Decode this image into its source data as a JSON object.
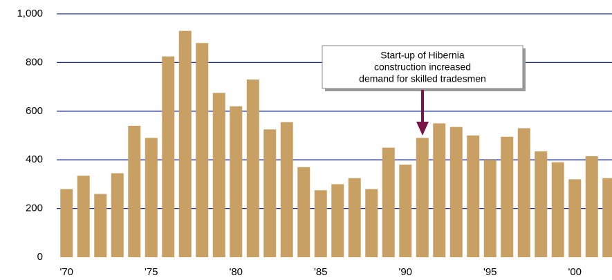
{
  "chart_data": {
    "type": "bar",
    "categories": [
      "'70",
      null,
      null,
      null,
      null,
      "'75",
      null,
      null,
      null,
      null,
      "'80",
      null,
      null,
      null,
      null,
      "'85",
      null,
      null,
      null,
      null,
      "'90",
      null,
      null,
      null,
      null,
      "'95",
      null,
      null,
      null,
      null,
      "'00",
      null,
      null
    ],
    "values": [
      280,
      335,
      260,
      345,
      540,
      490,
      825,
      930,
      880,
      675,
      620,
      730,
      525,
      555,
      370,
      275,
      300,
      325,
      280,
      450,
      380,
      490,
      550,
      535,
      500,
      400,
      495,
      530,
      435,
      390,
      320,
      415,
      325
    ],
    "color": "#c8a064",
    "ylim": [
      0,
      1000
    ],
    "yticks": [
      0,
      200,
      400,
      600,
      800,
      {
        "value": 1000,
        "label": "1,000"
      }
    ],
    "grid": true,
    "grid_color": "#1f2f9c",
    "annotation": {
      "lines": [
        "Start-up of Hibernia",
        "construction increased",
        "demand for skilled tradesmen"
      ],
      "arrow_color": "#7a1446"
    }
  }
}
